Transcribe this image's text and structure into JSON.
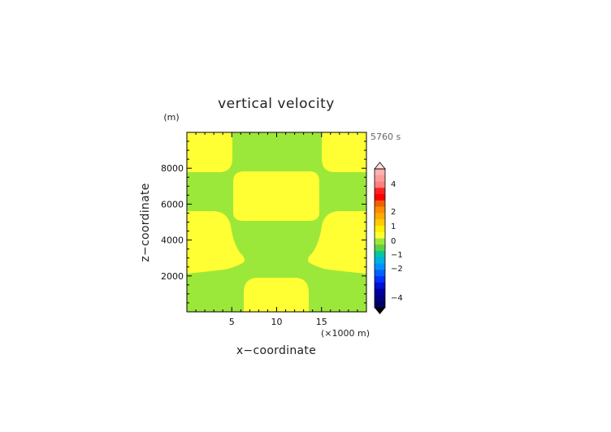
{
  "colors": {
    "background": "#9ce83a",
    "positive_region": "#ffff33",
    "axis": "#000000"
  },
  "chart_data": {
    "type": "heatmap",
    "title": "vertical velocity",
    "xlabel": "x−coordinate",
    "ylabel": "z−coordinate",
    "x_unit": "(×1000 m)",
    "y_unit": "(m)",
    "time_label": "5760 s",
    "xlim": [
      0,
      20
    ],
    "ylim": [
      0,
      10000
    ],
    "x_ticks": [
      5,
      10,
      15
    ],
    "y_ticks": [
      2000,
      4000,
      6000,
      8000
    ],
    "regions": [
      {
        "name": "top-left",
        "value_class": "0 to 1"
      },
      {
        "name": "top-right",
        "value_class": "0 to 1"
      },
      {
        "name": "upper-center",
        "value_class": "0 to 1"
      },
      {
        "name": "middle-left",
        "value_class": "0 to 1"
      },
      {
        "name": "middle-right",
        "value_class": "0 to 1"
      },
      {
        "name": "bottom-center",
        "value_class": "0 to 1"
      }
    ],
    "background_value_class": "-0.5 to 0",
    "colorbar": {
      "labels": [
        "4",
        "2",
        "1",
        "0",
        "−1",
        "−2",
        "−4"
      ],
      "segments": [
        "#ffb0b0",
        "#ff9a9a",
        "#ff8080",
        "#ff2020",
        "#ff0000",
        "#f06000",
        "#ff8c00",
        "#ffaa00",
        "#ffcc00",
        "#ffee00",
        "#ffff33",
        "#9ce83a",
        "#60d040",
        "#00c8a0",
        "#00b0e0",
        "#0090ff",
        "#0060ff",
        "#0030ff",
        "#0010d0",
        "#0000a0",
        "#000080",
        "#000060"
      ]
    }
  }
}
